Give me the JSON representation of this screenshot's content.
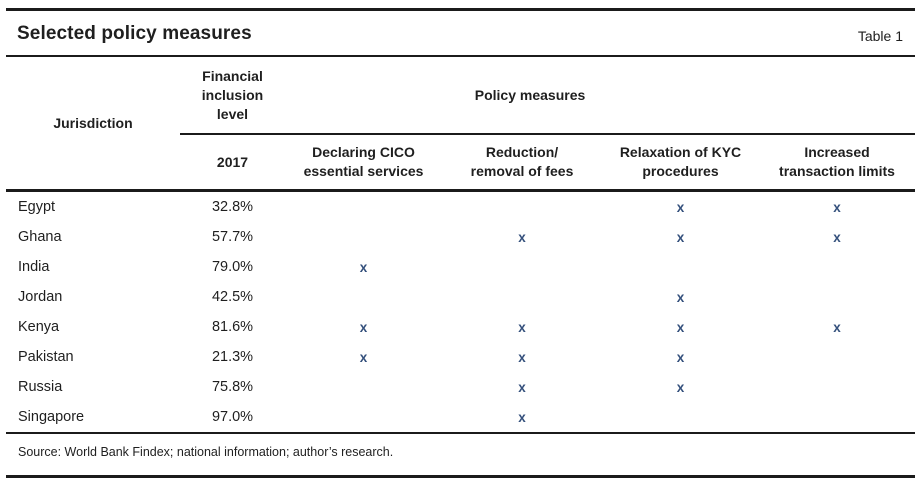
{
  "page": {
    "title": "Selected policy measures",
    "table_label": "Table 1",
    "source_note": "Source: World Bank Findex; national information; author’s research."
  },
  "table": {
    "header": {
      "jurisdiction": "Jurisdiction",
      "financial_inclusion_level": "Financial\ninclusion\nlevel",
      "policy_measures": "Policy measures",
      "year": "2017",
      "policy_columns": [
        "Declaring CICO\nessential services",
        "Reduction/\nremoval of fees",
        "Relaxation of KYC\nprocedures",
        "Increased\ntransaction limits"
      ]
    },
    "mark_symbol": "x",
    "rows": [
      {
        "jurisdiction": "Egypt",
        "level_2017": "32.8%",
        "declaring_cico": "",
        "fees": "",
        "kyc": "x",
        "limits": "x"
      },
      {
        "jurisdiction": "Ghana",
        "level_2017": "57.7%",
        "declaring_cico": "",
        "fees": "x",
        "kyc": "x",
        "limits": "x"
      },
      {
        "jurisdiction": "India",
        "level_2017": "79.0%",
        "declaring_cico": "x",
        "fees": "",
        "kyc": "",
        "limits": ""
      },
      {
        "jurisdiction": "Jordan",
        "level_2017": "42.5%",
        "declaring_cico": "",
        "fees": "",
        "kyc": "x",
        "limits": ""
      },
      {
        "jurisdiction": "Kenya",
        "level_2017": "81.6%",
        "declaring_cico": "x",
        "fees": "x",
        "kyc": "x",
        "limits": "x"
      },
      {
        "jurisdiction": "Pakistan",
        "level_2017": "21.3%",
        "declaring_cico": "x",
        "fees": "x",
        "kyc": "x",
        "limits": ""
      },
      {
        "jurisdiction": "Russia",
        "level_2017": "75.8%",
        "declaring_cico": "",
        "fees": "x",
        "kyc": "x",
        "limits": ""
      },
      {
        "jurisdiction": "Singapore",
        "level_2017": "97.0%",
        "declaring_cico": "",
        "fees": "x",
        "kyc": "",
        "limits": ""
      }
    ]
  },
  "colors": {
    "text": "#1f1f1f",
    "rule": "#1b1b1b",
    "mark": "#34507c",
    "background": "#ffffff"
  }
}
